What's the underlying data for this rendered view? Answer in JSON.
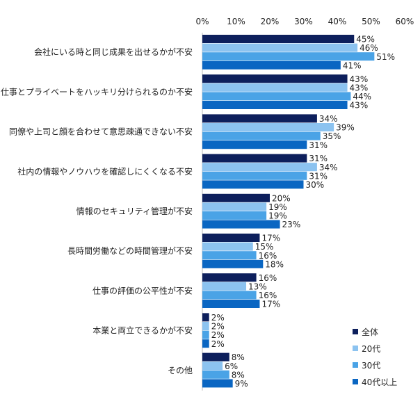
{
  "chart_data": {
    "type": "bar",
    "orientation": "horizontal",
    "title": "",
    "xlabel": "",
    "ylabel": "",
    "xlim": [
      0,
      60
    ],
    "ticks": [
      "0%",
      "10%",
      "20%",
      "30%",
      "40%",
      "50%",
      "60%"
    ],
    "tick_values": [
      0,
      10,
      20,
      30,
      40,
      50,
      60
    ],
    "grid": false,
    "legend_position": "bottom-right",
    "categories": [
      "会社にいる時と同じ成果を出せるかが不安",
      "仕事とプライベートをハッキリ分けられるのか不安",
      "同僚や上司と顔を合わせて意思疎通できない不安",
      "社内の情報やノウハウを確認しにくくなる不安",
      "情報のセキュリティ管理が不安",
      "長時間労働などの時間管理が不安",
      "仕事の評価の公平性が不安",
      "本業と両立できるかが不安",
      "その他"
    ],
    "series": [
      {
        "name": "全体",
        "color": "#0d1f5c",
        "values": [
          45,
          43,
          34,
          31,
          20,
          17,
          16,
          2,
          8
        ],
        "labels": [
          "45%",
          "43%",
          "34%",
          "31%",
          "20%",
          "17%",
          "16%",
          "2%",
          "8%"
        ]
      },
      {
        "name": "20代",
        "color": "#8cc3f0",
        "values": [
          46,
          43,
          39,
          34,
          19,
          15,
          13,
          2,
          6
        ],
        "labels": [
          "46%",
          "43%",
          "39%",
          "34%",
          "19%",
          "15%",
          "13%",
          "2%",
          "6%"
        ]
      },
      {
        "name": "30代",
        "color": "#4aa3e6",
        "values": [
          51,
          44,
          35,
          31,
          19,
          16,
          16,
          2,
          8
        ],
        "labels": [
          "51%",
          "44%",
          "35%",
          "31%",
          "19%",
          "16%",
          "16%",
          "2%",
          "8%"
        ]
      },
      {
        "name": "40代以上",
        "color": "#0a66c2",
        "values": [
          41,
          43,
          31,
          30,
          23,
          18,
          17,
          2,
          9
        ],
        "labels": [
          "41%",
          "43%",
          "31%",
          "30%",
          "23%",
          "18%",
          "17%",
          "2%",
          "9%"
        ]
      }
    ]
  }
}
